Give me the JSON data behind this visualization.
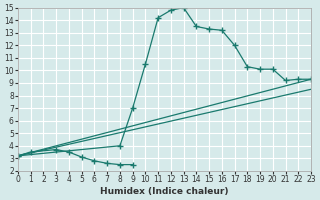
{
  "xlabel": "Humidex (Indice chaleur)",
  "ylabel": "",
  "xlim": [
    0,
    23
  ],
  "ylim": [
    2,
    15
  ],
  "xticks": [
    0,
    1,
    2,
    3,
    4,
    5,
    6,
    7,
    8,
    9,
    10,
    11,
    12,
    13,
    14,
    15,
    16,
    17,
    18,
    19,
    20,
    21,
    22,
    23
  ],
  "yticks": [
    2,
    3,
    4,
    5,
    6,
    7,
    8,
    9,
    10,
    11,
    12,
    13,
    14,
    15
  ],
  "bg_color": "#d6eaea",
  "grid_color": "#ffffff",
  "line_color": "#1a7a6e",
  "curve1": {
    "x": [
      0,
      1,
      3,
      4,
      5,
      6,
      7,
      8,
      9
    ],
    "y": [
      3.2,
      3.5,
      3.7,
      3.5,
      3.1,
      2.8,
      2.6,
      2.5,
      2.5
    ]
  },
  "curve2": {
    "x": [
      0,
      8,
      9,
      10,
      11,
      12,
      13,
      14,
      15,
      16,
      17,
      18,
      19,
      20,
      21,
      22,
      23
    ],
    "y": [
      3.2,
      4.0,
      7.0,
      10.5,
      14.2,
      14.8,
      15.0,
      13.5,
      13.3,
      13.2,
      12.0,
      10.3,
      10.1,
      10.1,
      9.2,
      9.3,
      9.3
    ]
  },
  "line1": {
    "x": [
      0,
      23
    ],
    "y": [
      3.2,
      8.5
    ]
  },
  "line2": {
    "x": [
      0,
      23
    ],
    "y": [
      3.2,
      9.3
    ]
  }
}
